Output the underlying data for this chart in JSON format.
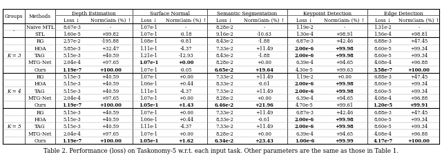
{
  "caption": "Table 2. Performance (loss) on Taskonomy-5 w.r.t. each input task. Other parameters are the same as those in Table 1.",
  "row_groups": [
    {
      "label": "-",
      "methods": [
        "Naive MTL",
        "STL"
      ]
    },
    {
      "label": "K = 3",
      "methods": [
        "RG",
        "HOA",
        "TAG",
        "MTG-Net",
        "Ours"
      ]
    },
    {
      "label": "K = 4",
      "methods": [
        "RG",
        "HOA",
        "TAG",
        "MTG-Net",
        "Ours"
      ]
    },
    {
      "label": "K = 5",
      "methods": [
        "RG",
        "HOA",
        "TAG",
        "MTG-Net",
        "Ours"
      ]
    }
  ],
  "tasks": [
    "Depth Estimation",
    "Surface Normal",
    "Semantic Segmentation",
    "Keypoint Detection",
    "Edge Detection"
  ],
  "data": {
    "-_Naive MTL": [
      "8.67e-3",
      "-",
      "1.07e-1",
      "-",
      "8.28e-2",
      "-",
      "1.19e-2",
      "-",
      "1.31e-2",
      "-"
    ],
    "-_STL": [
      "1.60e-5",
      "+99.82",
      "1.07e-1",
      "-0.18",
      "9.16e-2",
      "-10.63",
      "1.30e-4",
      "+98.91",
      "1.56e-4",
      "+98.81"
    ],
    "K=3_RG": [
      "2.57e-2",
      "-195.88",
      "1.08e-1",
      "-0.81",
      "8.43e-2",
      "-1.88",
      "6.87e-3",
      "+42.46",
      "6.88e-3",
      "+47.45"
    ],
    "K=3_HOA": [
      "5.85e-3",
      "+32.47",
      "1.11e-1",
      "-4.37",
      "7.33e-2",
      "+11.49",
      "2.00e-6",
      "+99.98",
      "8.60e-5",
      "+99.34"
    ],
    "K=3_TAG": [
      "5.15e-3",
      "+40.59",
      "1.21e-1",
      "-12.93",
      "8.43e-2",
      "-1.88",
      "2.00e-6",
      "+99.98",
      "8.60e-5",
      "+99.34"
    ],
    "K=3_MTG-Net": [
      "2.04e-4",
      "+97.65",
      "1.07e-1",
      "+0.00",
      "8.28e-2",
      "+0.00",
      "6.39e-4",
      "+94.65",
      "4.08e-4",
      "+96.88"
    ],
    "K=3_Ours": [
      "1.19e-7",
      "+100.00",
      "1.07e-1",
      "-0.05",
      "6.65e-2",
      "+19.64",
      "4.30e-5",
      "+99.63",
      "3.58e-7",
      "+100.00"
    ],
    "K=4_RG": [
      "5.15e-3",
      "+40.59",
      "1.07e-1",
      "+0.00",
      "7.33e-2",
      "+11.49",
      "1.19e-2",
      "+0.00",
      "6.88e-3",
      "+47.45"
    ],
    "K=4_HOA": [
      "5.15e-3",
      "+40.59",
      "1.06e-1",
      "+0.44",
      "8.33e-2",
      "-0.61",
      "2.00e-6",
      "+99.98",
      "8.60e-5",
      "+99.34"
    ],
    "K=4_TAG": [
      "5.15e-3",
      "+40.59",
      "1.11e-1",
      "-4.37",
      "7.33e-2",
      "+11.49",
      "2.00e-6",
      "+99.98",
      "8.60e-5",
      "+99.34"
    ],
    "K=4_MTG-Net": [
      "2.04e-4",
      "+97.65",
      "1.07e-1",
      "+0.00",
      "8.28e-2",
      "+0.00",
      "6.39e-4",
      "+94.65",
      "4.08e-4",
      "+96.88"
    ],
    "K=4_Ours": [
      "1.19e-7",
      "+100.00",
      "1.05e-1",
      "+1.43",
      "6.46e-2",
      "+21.96",
      "4.70e-5",
      "+99.61",
      "1.20e-5",
      "+99.91"
    ],
    "K=5_RG": [
      "5.15e-3",
      "+40.59",
      "1.07e-1",
      "+0.00",
      "7.33e-2",
      "+11.49",
      "6.87e-3",
      "+42.46",
      "6.88e-3",
      "+47.45"
    ],
    "K=5_HOA": [
      "5.15e-3",
      "+40.59",
      "1.06e-1",
      "+0.44",
      "8.33e-2",
      "-0.61",
      "2.00e-6",
      "+99.98",
      "8.60e-5",
      "+99.34"
    ],
    "K=5_TAG": [
      "5.15e-3",
      "+40.59",
      "1.11e-1",
      "-4.37",
      "7.33e-2",
      "+11.49",
      "2.00e-6",
      "+99.98",
      "8.60e-5",
      "+99.34"
    ],
    "K=5_MTG-Net": [
      "2.04e-4",
      "+97.65",
      "1.07e-1",
      "+0.00",
      "8.28e-2",
      "+0.00",
      "6.39e-4",
      "+94.65",
      "4.08e-4",
      "+96.88"
    ],
    "K=5_Ours": [
      "1.19e-7",
      "+100.00",
      "1.05e-1",
      "+1.62",
      "6.34e-2",
      "+23.43",
      "1.00e-6",
      "+99.99",
      "4.17e-7",
      "+100.00"
    ]
  },
  "bold": {
    "K=3_HOA": [
      false,
      false,
      false,
      false,
      false,
      false,
      true,
      true,
      false,
      false
    ],
    "K=3_TAG": [
      false,
      false,
      false,
      false,
      false,
      false,
      true,
      true,
      false,
      false
    ],
    "K=3_MTG-Net": [
      false,
      false,
      true,
      true,
      false,
      false,
      false,
      false,
      false,
      false
    ],
    "K=3_Ours": [
      true,
      true,
      false,
      false,
      true,
      true,
      false,
      false,
      true,
      true
    ],
    "K=4_HOA": [
      false,
      false,
      false,
      false,
      false,
      false,
      true,
      true,
      false,
      false
    ],
    "K=4_TAG": [
      false,
      false,
      false,
      false,
      false,
      false,
      true,
      true,
      false,
      false
    ],
    "K=4_Ours": [
      true,
      true,
      true,
      true,
      true,
      true,
      false,
      false,
      true,
      true
    ],
    "K=5_HOA": [
      false,
      false,
      false,
      false,
      false,
      false,
      true,
      true,
      false,
      false
    ],
    "K=5_TAG": [
      false,
      false,
      false,
      false,
      false,
      false,
      true,
      true,
      false,
      false
    ],
    "K=5_Ours": [
      true,
      true,
      true,
      true,
      true,
      true,
      true,
      true,
      true,
      true
    ]
  },
  "font_size": 5.2,
  "caption_font_size": 6.2
}
